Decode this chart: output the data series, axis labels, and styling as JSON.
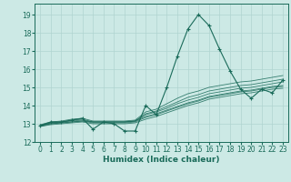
{
  "xlabel": "Humidex (Indice chaleur)",
  "background_color": "#cce9e5",
  "grid_color": "#b0d4d0",
  "line_color": "#1a6b5a",
  "xlim": [
    -0.5,
    23.5
  ],
  "ylim": [
    12,
    19.6
  ],
  "yticks": [
    12,
    13,
    14,
    15,
    16,
    17,
    18,
    19
  ],
  "xticks": [
    0,
    1,
    2,
    3,
    4,
    5,
    6,
    7,
    8,
    9,
    10,
    11,
    12,
    13,
    14,
    15,
    16,
    17,
    18,
    19,
    20,
    21,
    22,
    23
  ],
  "main_line": [
    12.9,
    13.1,
    13.1,
    13.2,
    13.3,
    12.7,
    13.1,
    13.0,
    12.6,
    12.6,
    14.0,
    13.5,
    15.0,
    16.7,
    18.2,
    19.0,
    18.4,
    17.1,
    15.9,
    14.9,
    14.4,
    14.9,
    14.7,
    15.4
  ],
  "line1": [
    12.9,
    13.0,
    13.05,
    13.1,
    13.15,
    13.1,
    13.1,
    13.1,
    13.1,
    13.15,
    13.4,
    13.55,
    13.75,
    13.95,
    14.15,
    14.3,
    14.5,
    14.6,
    14.7,
    14.8,
    14.85,
    14.95,
    15.05,
    15.1
  ],
  "line2": [
    12.9,
    13.05,
    13.1,
    13.15,
    13.2,
    13.1,
    13.1,
    13.1,
    13.1,
    13.15,
    13.5,
    13.65,
    13.85,
    14.1,
    14.3,
    14.45,
    14.65,
    14.75,
    14.85,
    14.95,
    15.0,
    15.1,
    15.2,
    15.3
  ],
  "line3": [
    12.9,
    13.05,
    13.1,
    13.2,
    13.25,
    13.1,
    13.1,
    13.1,
    13.1,
    13.15,
    13.55,
    13.7,
    13.95,
    14.2,
    14.45,
    14.6,
    14.8,
    14.9,
    15.0,
    15.1,
    15.15,
    15.25,
    15.35,
    15.45
  ],
  "line4": [
    12.85,
    13.0,
    13.05,
    13.1,
    13.15,
    13.05,
    13.05,
    13.05,
    13.05,
    13.1,
    13.35,
    13.5,
    13.7,
    13.9,
    14.1,
    14.25,
    14.45,
    14.55,
    14.65,
    14.75,
    14.8,
    14.9,
    15.0,
    15.05
  ],
  "line5": [
    12.95,
    13.1,
    13.15,
    13.25,
    13.3,
    13.15,
    13.15,
    13.15,
    13.15,
    13.2,
    13.65,
    13.8,
    14.1,
    14.4,
    14.65,
    14.8,
    15.0,
    15.1,
    15.2,
    15.3,
    15.35,
    15.45,
    15.55,
    15.65
  ],
  "line6": [
    12.85,
    12.95,
    13.0,
    13.05,
    13.1,
    13.0,
    13.0,
    13.0,
    13.0,
    13.05,
    13.25,
    13.4,
    13.6,
    13.8,
    14.0,
    14.15,
    14.35,
    14.45,
    14.55,
    14.65,
    14.7,
    14.8,
    14.9,
    14.95
  ]
}
